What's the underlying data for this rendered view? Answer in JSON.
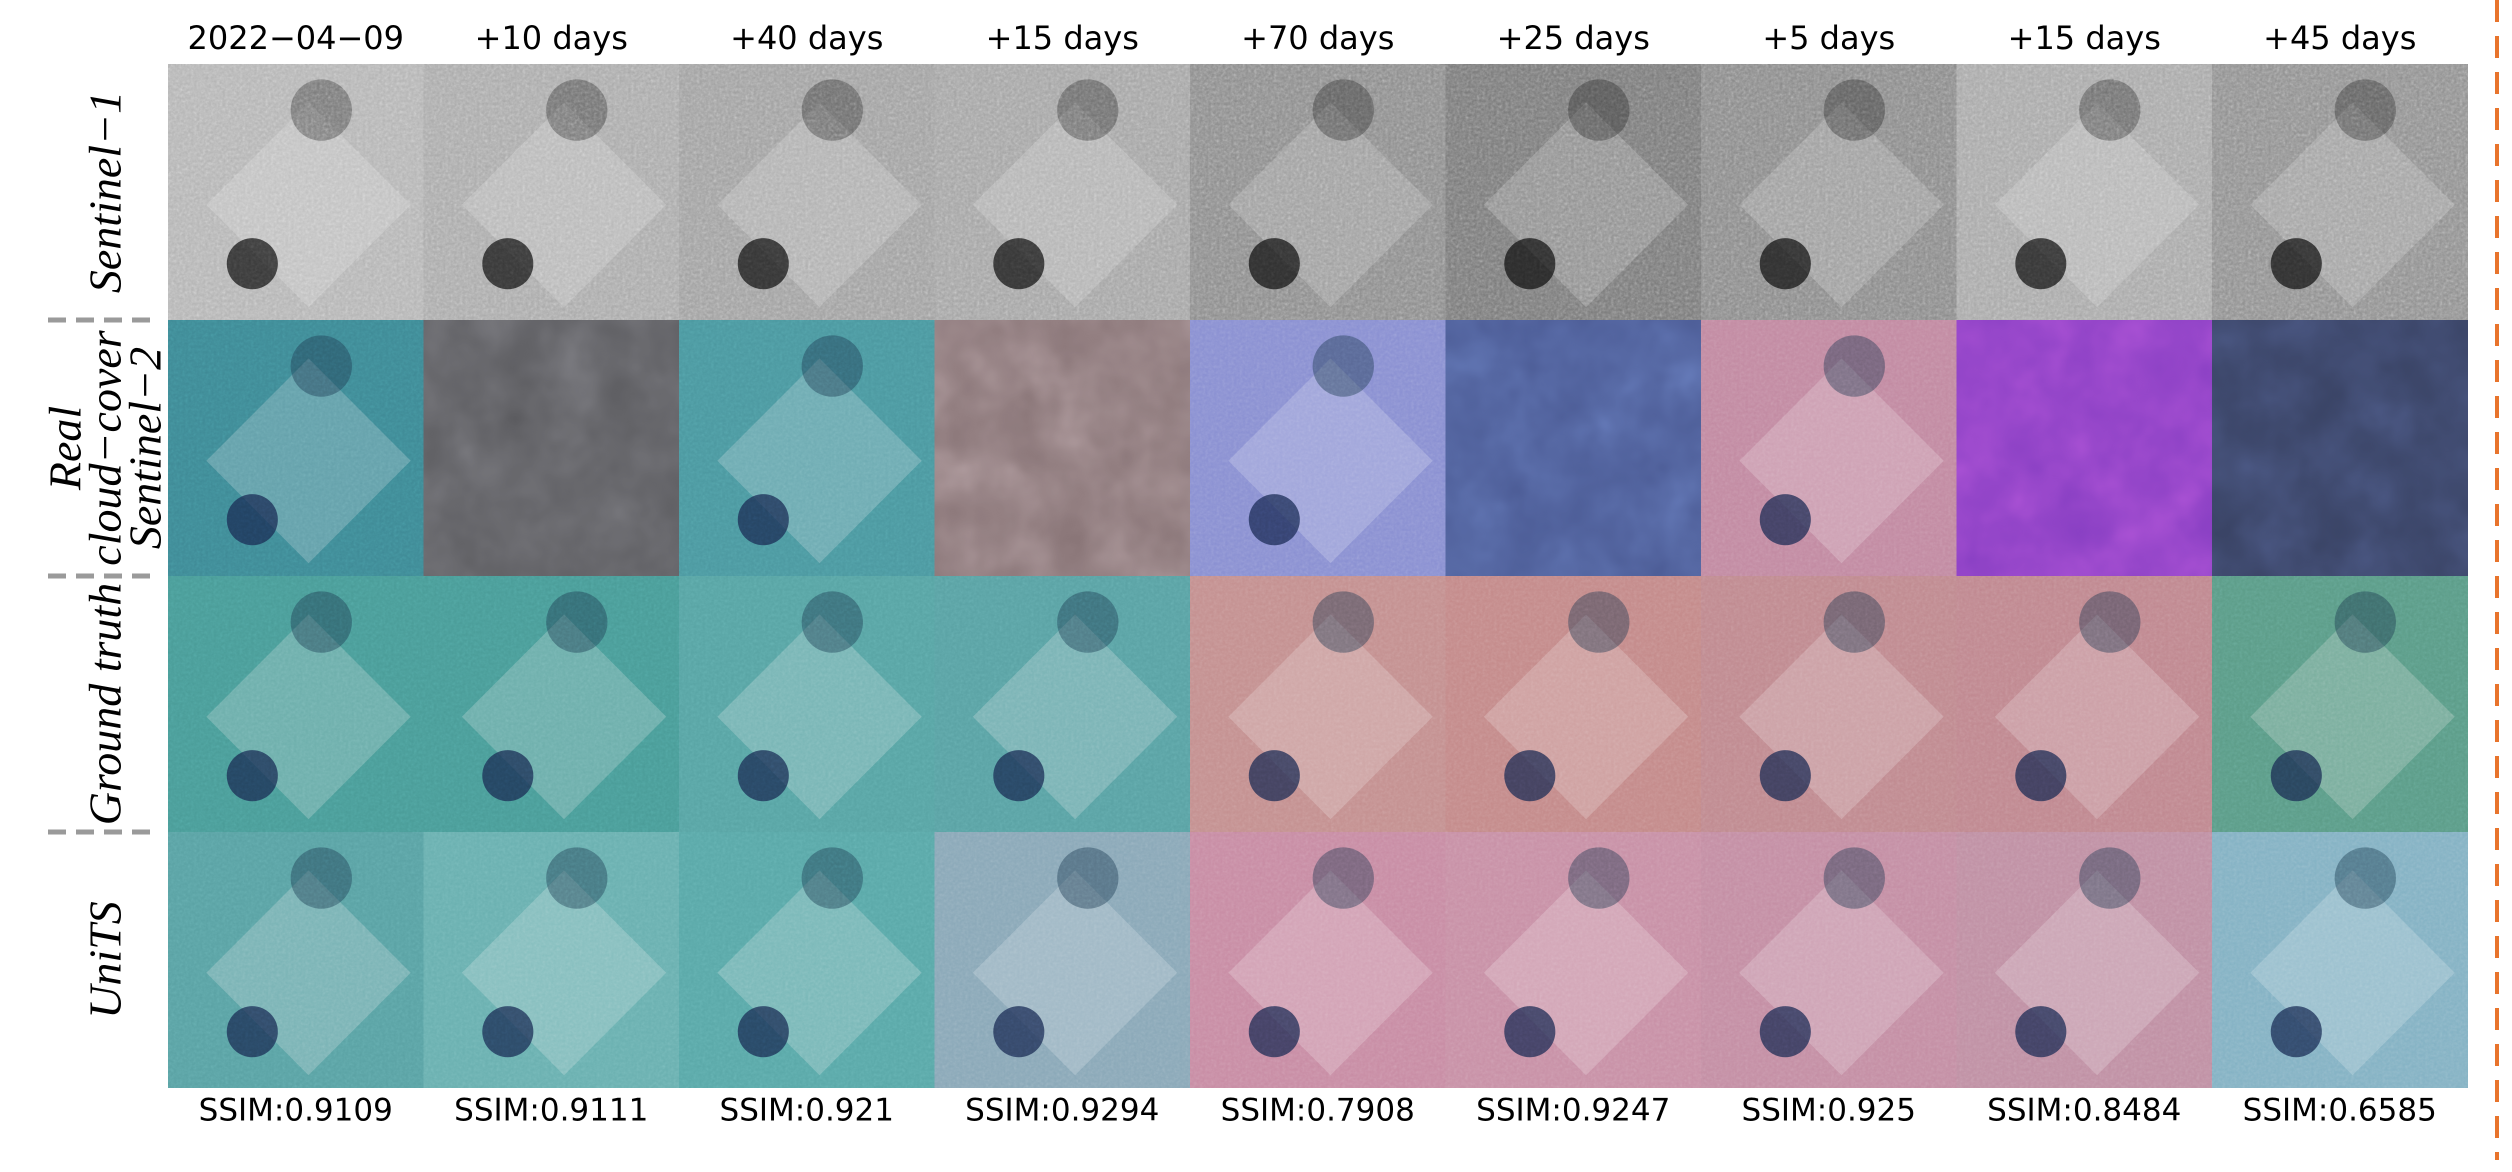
{
  "column_headers": [
    "2022−04−09",
    "+10  days",
    "+40  days",
    "+15  days",
    "+70  days",
    "+25  days",
    "+5  days",
    "+15  days",
    "+45  days"
  ],
  "row_labels": [
    {
      "lines": [
        "Sentinel−1"
      ]
    },
    {
      "lines": [
        "Real",
        "cloud−cover",
        "Sentinel−2"
      ]
    },
    {
      "lines": [
        "Ground truth"
      ]
    },
    {
      "lines": [
        "UniTS"
      ]
    }
  ],
  "ssim_labels": [
    "SSIM:0.9109",
    "SSIM:0.9111",
    "SSIM:0.921",
    "SSIM:0.9294",
    "SSIM:0.7908",
    "SSIM:0.9247",
    "SSIM:0.925",
    "SSIM:0.8484",
    "SSIM:0.6585"
  ]
}
